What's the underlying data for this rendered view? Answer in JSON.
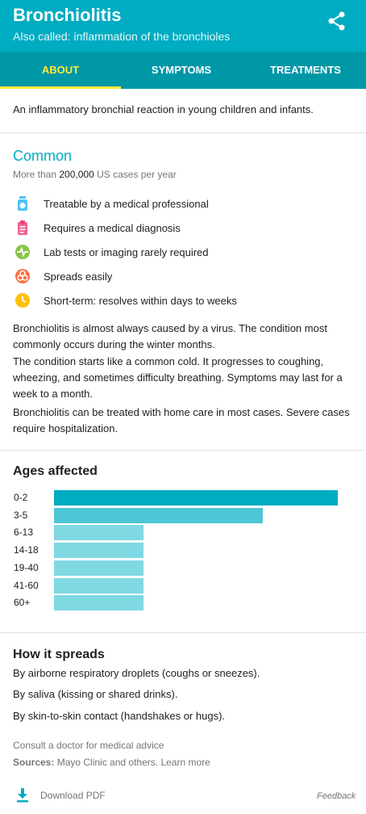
{
  "header": {
    "title": "Bronchiolitis",
    "subtitle": "Also called: inflammation of the bronchioles",
    "share_icon": "share-icon"
  },
  "tabs": [
    {
      "label": "ABOUT",
      "active": true
    },
    {
      "label": "SYMPTOMS",
      "active": false
    },
    {
      "label": "TREATMENTS",
      "active": false
    }
  ],
  "about": {
    "description": "An inflammatory bronchial reaction in young children and infants.",
    "prevalence": "Common",
    "cases_prefix": "More than ",
    "cases_count": "200,000",
    "cases_suffix": " US cases per year",
    "features": [
      {
        "icon": "medicine-bottle-icon",
        "label": "Treatable by a medical professional",
        "color": "#4FC3F7"
      },
      {
        "icon": "clipboard-icon",
        "label": "Requires a medical diagnosis",
        "color": "#F06292"
      },
      {
        "icon": "pulse-icon",
        "label": "Lab tests or imaging rarely required",
        "color": "#8BC34A"
      },
      {
        "icon": "biohazard-icon",
        "label": "Spreads easily",
        "color": "#FF7043"
      },
      {
        "icon": "clock-icon",
        "label": "Short-term: resolves within days to weeks",
        "color": "#FFC107"
      }
    ],
    "paragraphs": [
      "Bronchiolitis is almost always caused by a virus. The condition most commonly occurs during the winter months.",
      "The condition starts like a common cold. It progresses to coughing, wheezing, and sometimes difficulty breathing. Symptoms may last for a week to a month.",
      "Bronchiolitis can be treated with home care in most cases. Severe cases require hospitalization."
    ]
  },
  "ages": {
    "title": "Ages affected",
    "groups": [
      {
        "label": "0-2",
        "level": 1.0,
        "color": "#00ACC1"
      },
      {
        "label": "3-5",
        "level": 0.735,
        "color": "#4DC6D6"
      },
      {
        "label": "6-13",
        "level": 0.315,
        "color": "#80D8E3"
      },
      {
        "label": "14-18",
        "level": 0.315,
        "color": "#80D8E3"
      },
      {
        "label": "19-40",
        "level": 0.315,
        "color": "#80D8E3"
      },
      {
        "label": "41-60",
        "level": 0.315,
        "color": "#80D8E3"
      },
      {
        "label": "60+",
        "level": 0.315,
        "color": "#80D8E3"
      }
    ]
  },
  "spread": {
    "title": "How it spreads",
    "items": [
      "By airborne respiratory droplets (coughs or sneezes).",
      "By saliva (kissing or shared drinks).",
      "By skin-to-skin contact (handshakes or hugs)."
    ]
  },
  "footer": {
    "consult": "Consult a doctor for medical advice",
    "sources_label": "Sources:",
    "sources_text": " Mayo Clinic and others.",
    "learn_more": "Learn more",
    "download_label": "Download PDF",
    "download_icon": "download-icon",
    "feedback": "Feedback"
  },
  "colors": {
    "header": "#00ACC1",
    "tabs": "#0097A7",
    "active_tab": "#FFEB3B"
  }
}
